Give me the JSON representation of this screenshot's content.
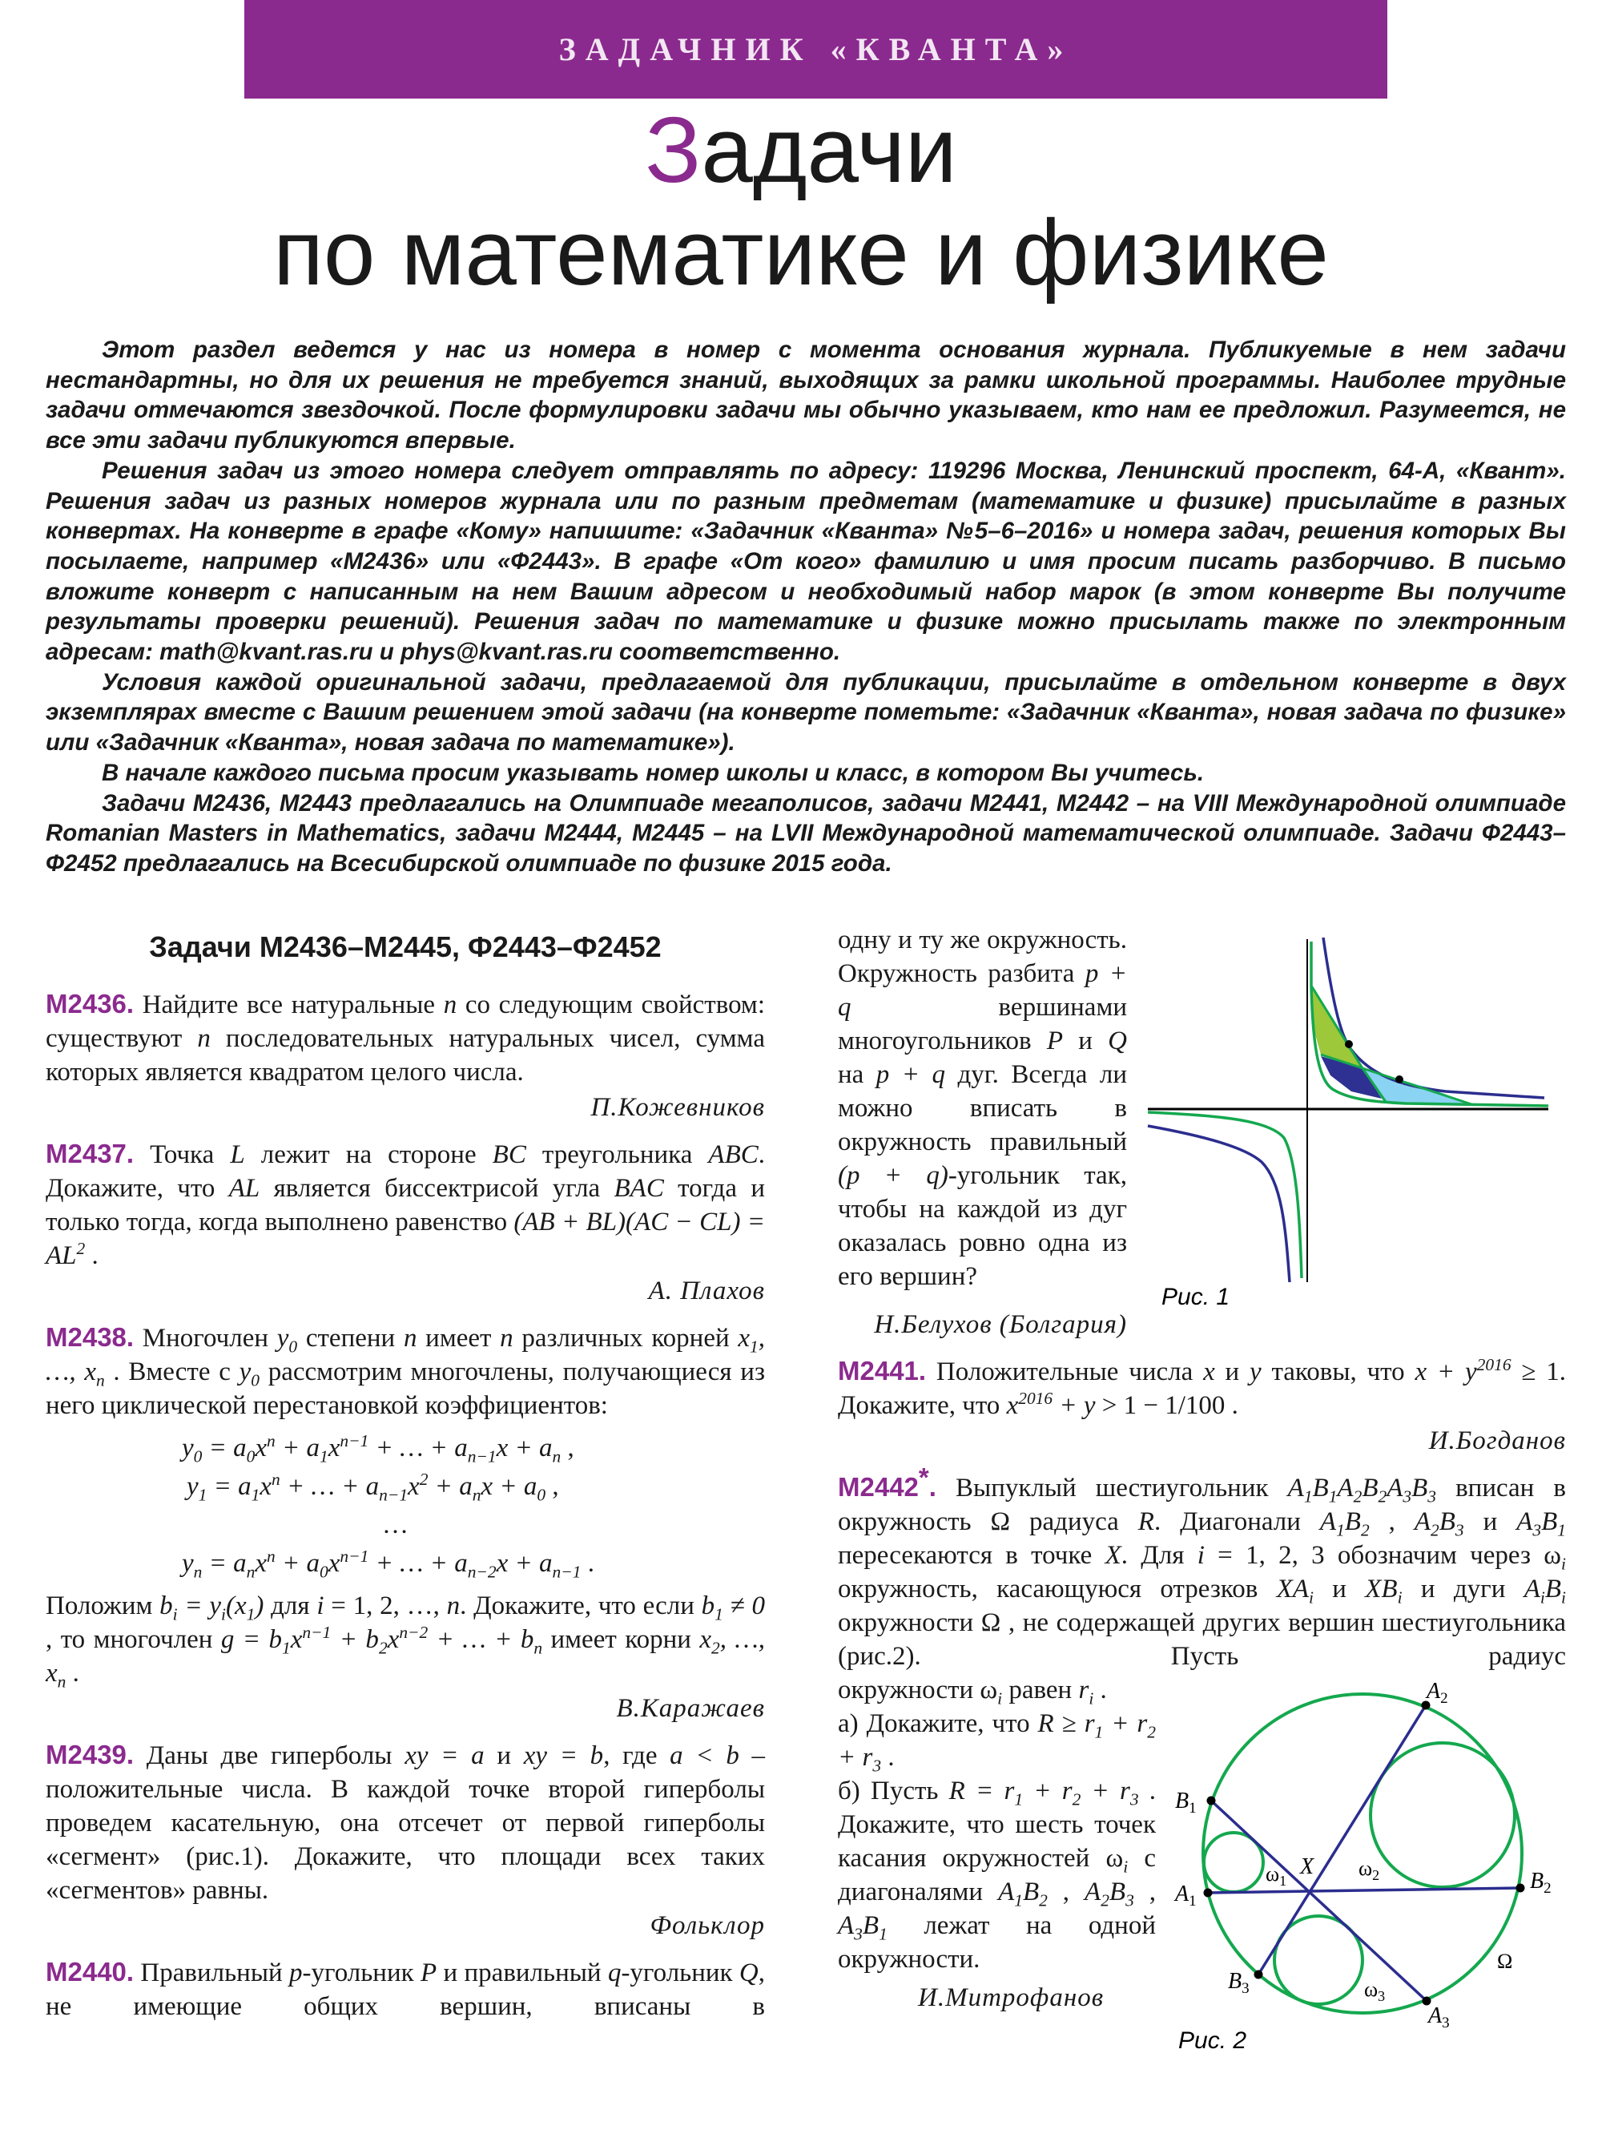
{
  "banner": "ЗАДАЧНИК «КВАНТА»",
  "title": {
    "accent": "З",
    "line1_rest": "адачи",
    "line2": "по математике и физике"
  },
  "intro": [
    "Этот раздел ведется у нас из номера в номер с момента основания журнала. Публикуемые в нем задачи нестандартны, но для их решения не требуется знаний, выходящих за рамки школьной программы. Наиболее трудные задачи отмечаются звездочкой. После формулировки задачи мы обычно указываем, кто нам ее предложил. Разумеется, не все эти задачи публикуются впервые.",
    "Решения задач из этого номера следует отправлять по адресу: 119296 Москва, Ленинский проспект, 64-А, «Квант». Решения задач из разных номеров журнала или по разным предметам (математике и физике) присылайте в разных конвертах. На конверте в графе «Кому» напишите: «Задачник «Кванта» №5–6–2016» и номера задач, решения которых Вы посылаете, например «М2436» или «Ф2443». В графе «От кого» фамилию и имя просим писать разборчиво. В письмо вложите конверт с написанным на нем Вашим адресом и необходимый набор марок (в этом конверте Вы получите результаты проверки решений). Решения задач по математике и физике можно присылать также по электронным адресам: math@kvant.ras.ru и phys@kvant.ras.ru соответственно.",
    "Условия каждой оригинальной задачи, предлагаемой для публикации, присылайте в отдельном конверте в двух экземплярах вместе с Вашим решением этой задачи (на конверте пометьте: «Задачник «Кванта», новая задача по физике» или «Задачник «Кванта», новая задача по математике»).",
    "В начале каждого письма просим указывать номер школы и класс, в котором Вы учитесь.",
    "Задачи М2436, М2443 предлагались на Олимпиаде мегаполисов, задачи М2441, М2442 – на VIII Международной олимпиаде Romanian Masters in Mathematics, задачи М2444, М2445 – на LVII Международной математической олимпиаде. Задачи Ф2443–Ф2452 предлагались на Всесибирской олимпиаде по физике 2015 года."
  ],
  "section_heading": "Задачи М2436–М2445, Ф2443–Ф2452",
  "problems": {
    "m2436": {
      "label": "М2436.",
      "text": " Найдите все натуральные $n$ со следующим свойством: существуют $n$ последовательных натуральных чисел, сумма которых является квадратом целого числа.",
      "author": "П.Кожевников"
    },
    "m2437": {
      "label": "М2437.",
      "text": " Точка $L$ лежит на стороне $BC$ треугольника $ABC$. Докажите, что $AL$ является биссектрисой угла $BAC$ тогда и только тогда, когда выполнено равенство $(AB + BL)(AC − CL) = AL^{2}$ .",
      "author": "А. Плахов"
    },
    "m2438": {
      "label": "М2438.",
      "text": " Многочлен $y_{0}$ степени $n$ имеет $n$ различных корней $x_{1}, …, x_{n}$ . Вместе с $y_{0}$ рассмотрим многочлены, получающиеся из него циклической перестановкой коэффициентов:",
      "equations": [
        "$y_{0} = a_{0}x^{n} + a_{1}x^{n−1} + … + a_{n−1}x + a_{n}$ ,",
        "$y_{1} = a_{1}x^{n} + … + a_{n−1}x^{2} + a_{n}x + a_{0}$ ,",
        "…",
        "$y_{n} = a_{n}x^{n} + a_{0}x^{n−1} + … + a_{n−2}x + a_{n−1}$ ."
      ],
      "text2": "Положим $b_{i} = y_{i}(x_{1})$ для $i$ = 1, 2, …, $n$. Докажите, что если $b_{1} ≠ 0$ , то многочлен $g = b_{1}x^{n−1} + b_{2}x^{n−2} + … + b_{n}$ имеет корни $x_{2}, …, x_{n}$ .",
      "author": "В.Каражаев"
    },
    "m2439": {
      "label": "М2439.",
      "text": " Даны две гиперболы $xy = a$ и $xy = b$, где $a < b$ – положительные числа. В каждой точке второй гиперболы проведем касательную, она отсечет от первой гиперболы «сегмент» (рис.1). Докажите, что площади всех таких «сегментов» равны.",
      "author": "Фольклор"
    },
    "m2440": {
      "label": "М2440.",
      "text": " Правильный $p$-угольник $P$ и правильный $q$-угольник $Q$, не имеющие общих вершин, вписаны в",
      "text_cont": "одну и ту же окружность. Окружность разбита $p + q$ вершинами многоугольников $P$ и $Q$ на $p + q$ дуг. Всегда ли можно вписать в окружность правильный $(p + q)$-угольник так, чтобы на каждой из дуг оказалась ровно одна из его вершин?",
      "author": "Н.Белухов (Болгария)"
    },
    "m2441": {
      "label": "М2441.",
      "text": " Положительные числа $x$ и $y$ таковы, что $x + y^{2016}$ ≥ 1. Докажите, что $x^{2016} + y$ > 1 − 1/100 .",
      "author": "И.Богданов"
    },
    "m2442": {
      "label": "М2442",
      "star": "*",
      "label_dot": ".",
      "text": " Выпуклый шестиугольник $A_{1}B_{1}A_{2}B_{2}A_{3}B_{3}$ вписан в окружность Ω радиуса $R$. Диагонали $A_{1}B_{2}$ , $A_{2}B_{3}$ и $A_{3}B_{1}$ пересекаются в точке $X$. Для $i$ = 1, 2, 3 обозначим через ω$_{i}$ окружность, касающуюся отрезков $XA_{i}$ и $XB_{i}$ и дуги $A_{i}B_{i}$ окружности Ω , не содержащей других вершин шестиугольника (рис.2). Пусть радиус",
      "text_cont": "окружности ω$_{i}$ равен $r_{i}$ .",
      "part_a": "а) Докажите, что $R ≥ r_{1} + r_{2} + r_{3}$ .",
      "part_b": "б) Пусть $R = r_{1} + r_{2} + r_{3}$ . Докажите, что шесть точек касания окружностей ω$_{i}$ с диагоналями $A_{1}B_{2}$ , $A_{2}B_{3}$ , $A_{3}B_{1}$ лежат на одной окружности.",
      "author": "И.Митрофанов"
    }
  },
  "figures": {
    "fig1": {
      "caption": "Рис. 1",
      "colors": {
        "curve_a": "#2b2d8e",
        "curve_b": "#14a84e",
        "fill_light_green": "#9cc83a",
        "fill_dark_blue": "#2e3192",
        "fill_light_blue": "#8ad3f2"
      }
    },
    "fig2": {
      "caption": "Рис. 2",
      "labels": {
        "A1": "A",
        "A1s": "1",
        "A2": "A",
        "A2s": "2",
        "A3": "A",
        "A3s": "3",
        "B1": "B",
        "B1s": "1",
        "B2": "B",
        "B2s": "2",
        "B3": "B",
        "B3s": "3",
        "X": "X",
        "w1": "ω",
        "w1s": "1",
        "w2": "ω",
        "w2s": "2",
        "w3": "ω",
        "w3s": "3",
        "Omega": "Ω"
      },
      "colors": {
        "circles": "#14a84e",
        "lines": "#2b2d8e"
      }
    }
  },
  "colors": {
    "brand_purple": "#8b2a8e"
  }
}
